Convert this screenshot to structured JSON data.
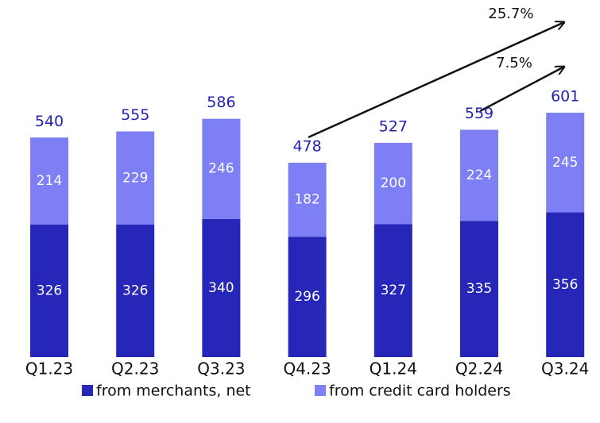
{
  "chart_data": {
    "type": "stacked-bar",
    "categories": [
      "Q1.23",
      "Q2.23",
      "Q3.23",
      "Q4.23",
      "Q1.24",
      "Q2.24",
      "Q3.24"
    ],
    "series": [
      {
        "name": "from merchants, net",
        "color": "#2626b8",
        "values": [
          326,
          326,
          340,
          296,
          327,
          335,
          356
        ]
      },
      {
        "name": "from credit card holders",
        "color": "#7e7ef5",
        "values": [
          214,
          229,
          246,
          182,
          200,
          224,
          245
        ]
      }
    ],
    "totals": [
      540,
      555,
      586,
      478,
      527,
      559,
      601
    ],
    "annotations": [
      "25.7%",
      "7.5%"
    ]
  }
}
